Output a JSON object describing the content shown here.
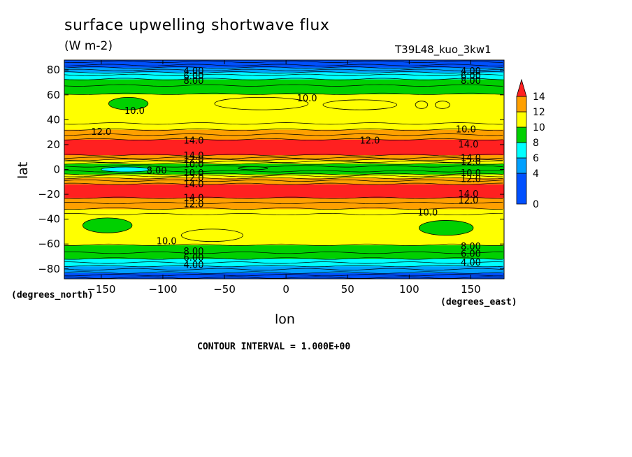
{
  "chart_data": {
    "type": "heatmap",
    "title": "surface upwelling shortwave flux",
    "units": "(W m-2)",
    "run_label": "T39L48_kuo_3kw1",
    "xlabel": "lon",
    "ylabel": "lat",
    "x_unit_label": "(degrees_east)",
    "y_unit_label": "(degrees_north)",
    "xlim": [
      -180,
      177
    ],
    "ylim": [
      -88,
      88
    ],
    "x_ticks": [
      -150,
      -100,
      -50,
      0,
      50,
      100,
      150
    ],
    "y_ticks": [
      -80,
      -60,
      -40,
      -20,
      0,
      20,
      40,
      60,
      80
    ],
    "x_tick_labels": [
      "−150",
      "−100",
      "−50",
      "0",
      "50",
      "100",
      "150"
    ],
    "y_tick_labels": [
      "−80",
      "−60",
      "−40",
      "−20",
      "0",
      "20",
      "40",
      "60",
      "80"
    ],
    "contour_interval_text": "CONTOUR INTERVAL = 1.000E+00",
    "colorbar": {
      "levels": [
        0,
        2,
        4,
        6,
        8,
        10,
        12,
        14
      ],
      "tick_labels": [
        "0",
        "4",
        "6",
        "8",
        "10",
        "12",
        "14"
      ],
      "tick_values": [
        0,
        4,
        6,
        8,
        10,
        12,
        14
      ],
      "colors": [
        "#0050ff",
        "#00a0ff",
        "#00ffff",
        "#00d000",
        "#ffff00",
        "#ffa000",
        "#ff2020"
      ]
    },
    "zonal_profile": [
      {
        "lat": 88,
        "value": 1.5
      },
      {
        "lat": 84,
        "value": 3.0
      },
      {
        "lat": 81,
        "value": 4.5
      },
      {
        "lat": 78,
        "value": 6.0
      },
      {
        "lat": 75,
        "value": 7.5
      },
      {
        "lat": 70,
        "value": 8.6
      },
      {
        "lat": 64,
        "value": 9.6
      },
      {
        "lat": 56,
        "value": 10.6
      },
      {
        "lat": 48,
        "value": 10.6
      },
      {
        "lat": 40,
        "value": 10.5
      },
      {
        "lat": 34,
        "value": 11.5
      },
      {
        "lat": 30,
        "value": 12.5
      },
      {
        "lat": 26,
        "value": 13.5
      },
      {
        "lat": 22,
        "value": 14.6
      },
      {
        "lat": 14,
        "value": 14.8
      },
      {
        "lat": 10,
        "value": 13.5
      },
      {
        "lat": 7,
        "value": 11.5
      },
      {
        "lat": 4,
        "value": 9.5
      },
      {
        "lat": 2,
        "value": 8.8
      },
      {
        "lat": 0,
        "value": 8.6
      },
      {
        "lat": -3,
        "value": 9.5
      },
      {
        "lat": -6,
        "value": 11.5
      },
      {
        "lat": -10,
        "value": 13.5
      },
      {
        "lat": -14,
        "value": 14.7
      },
      {
        "lat": -20,
        "value": 14.7
      },
      {
        "lat": -25,
        "value": 13.5
      },
      {
        "lat": -29,
        "value": 12.5
      },
      {
        "lat": -34,
        "value": 11.5
      },
      {
        "lat": -38,
        "value": 10.5
      },
      {
        "lat": -50,
        "value": 10.6
      },
      {
        "lat": -58,
        "value": 10.4
      },
      {
        "lat": -64,
        "value": 9.5
      },
      {
        "lat": -70,
        "value": 8.5
      },
      {
        "lat": -75,
        "value": 7.0
      },
      {
        "lat": -79,
        "value": 5.5
      },
      {
        "lat": -83,
        "value": 4.0
      },
      {
        "lat": -88,
        "value": 1.5
      }
    ],
    "contour_labels": [
      {
        "text": "4.00",
        "lon": -75,
        "lat": 79
      },
      {
        "text": "6.00",
        "lon": -75,
        "lat": 75
      },
      {
        "text": "8.00",
        "lon": -75,
        "lat": 71
      },
      {
        "text": "4.00",
        "lon": 150,
        "lat": 79
      },
      {
        "text": "6.00",
        "lon": 150,
        "lat": 75
      },
      {
        "text": "8.00",
        "lon": 150,
        "lat": 71
      },
      {
        "text": "10.0",
        "lon": 17,
        "lat": 57
      },
      {
        "text": "10.0",
        "lon": -123,
        "lat": 47
      },
      {
        "text": "10.0",
        "lon": 146,
        "lat": 32
      },
      {
        "text": "12.0",
        "lon": -150,
        "lat": 30
      },
      {
        "text": "12.0",
        "lon": 68,
        "lat": 23
      },
      {
        "text": "14.0",
        "lon": -75,
        "lat": 23
      },
      {
        "text": "14.0",
        "lon": 148,
        "lat": 20
      },
      {
        "text": "14.0",
        "lon": -75,
        "lat": 11
      },
      {
        "text": "12.0",
        "lon": -75,
        "lat": 8
      },
      {
        "text": "10.0",
        "lon": -75,
        "lat": 4
      },
      {
        "text": "8.00",
        "lon": -105,
        "lat": -1
      },
      {
        "text": "10.0",
        "lon": -75,
        "lat": -3
      },
      {
        "text": "12.0",
        "lon": -75,
        "lat": -7
      },
      {
        "text": "14.0",
        "lon": -75,
        "lat": -12
      },
      {
        "text": "14.0",
        "lon": 150,
        "lat": 9
      },
      {
        "text": "12.0",
        "lon": 150,
        "lat": 6
      },
      {
        "text": "10.0",
        "lon": 150,
        "lat": -3
      },
      {
        "text": "12.0",
        "lon": 150,
        "lat": -8
      },
      {
        "text": "14.0",
        "lon": 148,
        "lat": -20
      },
      {
        "text": "12.0",
        "lon": 148,
        "lat": -25
      },
      {
        "text": "14.0",
        "lon": -75,
        "lat": -23
      },
      {
        "text": "12.0",
        "lon": -75,
        "lat": -28
      },
      {
        "text": "10.0",
        "lon": 115,
        "lat": -35
      },
      {
        "text": "10.0",
        "lon": -97,
        "lat": -58
      },
      {
        "text": "8.00",
        "lon": 150,
        "lat": -62
      },
      {
        "text": "6.00",
        "lon": 150,
        "lat": -68
      },
      {
        "text": "4.00",
        "lon": 150,
        "lat": -75
      },
      {
        "text": "8.00",
        "lon": -75,
        "lat": -66
      },
      {
        "text": "6.00",
        "lon": -75,
        "lat": -71
      },
      {
        "text": "4.00",
        "lon": -75,
        "lat": -77
      }
    ]
  }
}
